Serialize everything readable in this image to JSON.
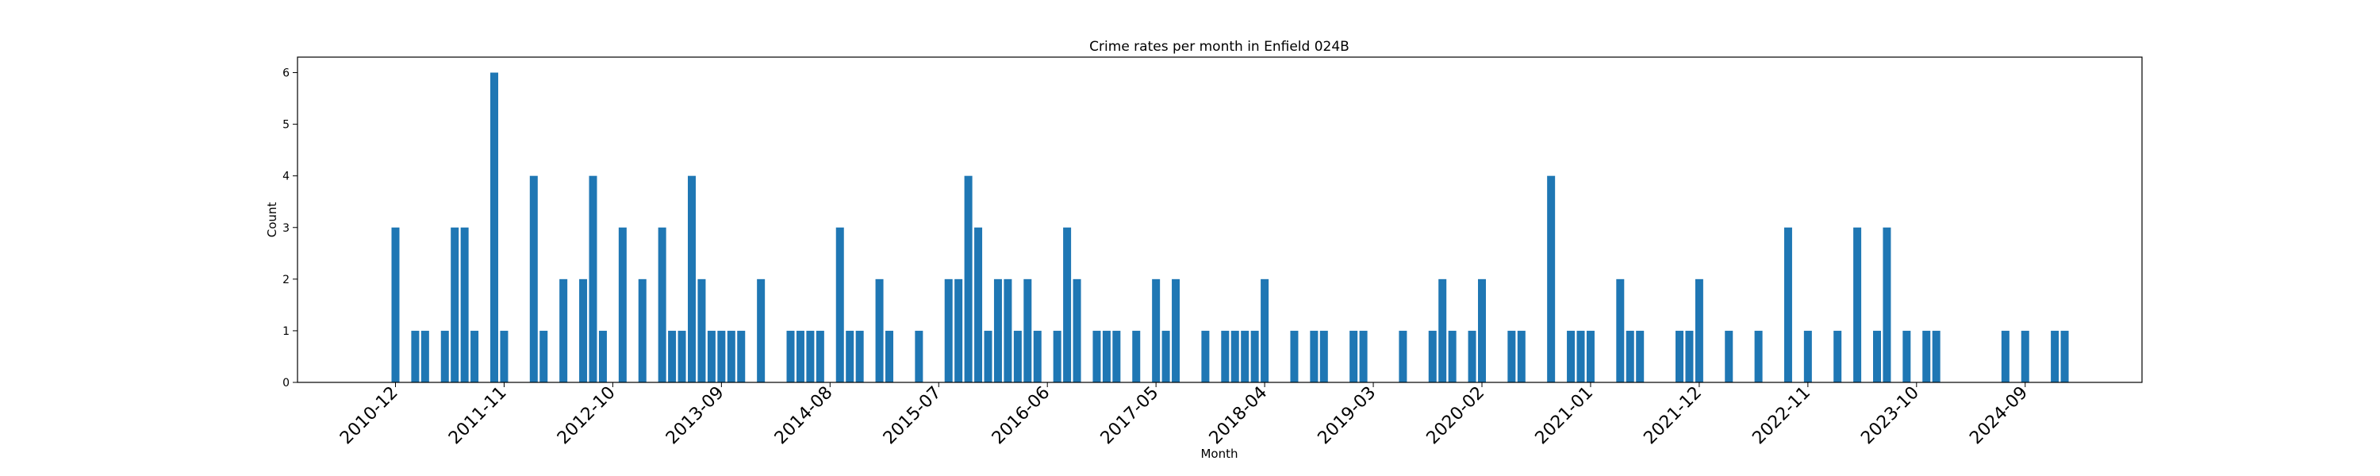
{
  "chart_data": {
    "type": "bar",
    "title": "Crime rates per month in Enfield 024B",
    "xlabel": "Month",
    "ylabel": "Count",
    "ylim": [
      0,
      6.3
    ],
    "yticks": [
      0,
      1,
      2,
      3,
      4,
      5,
      6
    ],
    "xtick_labels": [
      "2010-12",
      "2011-11",
      "2012-10",
      "2013-09",
      "2014-08",
      "2015-07",
      "2016-06",
      "2017-05",
      "2018-04",
      "2019-03",
      "2020-02",
      "2021-01",
      "2021-12",
      "2022-11",
      "2023-10",
      "2024-09"
    ],
    "bar_color": "#1f77b4",
    "grid": false,
    "data": [
      {
        "month": "2010-12",
        "value": 3
      },
      {
        "month": "2011-01",
        "value": 0
      },
      {
        "month": "2011-02",
        "value": 1
      },
      {
        "month": "2011-03",
        "value": 1
      },
      {
        "month": "2011-04",
        "value": 0
      },
      {
        "month": "2011-05",
        "value": 1
      },
      {
        "month": "2011-06",
        "value": 3
      },
      {
        "month": "2011-07",
        "value": 3
      },
      {
        "month": "2011-08",
        "value": 1
      },
      {
        "month": "2011-09",
        "value": 0
      },
      {
        "month": "2011-10",
        "value": 6
      },
      {
        "month": "2011-11",
        "value": 1
      },
      {
        "month": "2011-12",
        "value": 0
      },
      {
        "month": "2012-01",
        "value": 0
      },
      {
        "month": "2012-02",
        "value": 4
      },
      {
        "month": "2012-03",
        "value": 1
      },
      {
        "month": "2012-04",
        "value": 0
      },
      {
        "month": "2012-05",
        "value": 2
      },
      {
        "month": "2012-06",
        "value": 0
      },
      {
        "month": "2012-07",
        "value": 2
      },
      {
        "month": "2012-08",
        "value": 4
      },
      {
        "month": "2012-09",
        "value": 1
      },
      {
        "month": "2012-10",
        "value": 0
      },
      {
        "month": "2012-11",
        "value": 3
      },
      {
        "month": "2012-12",
        "value": 0
      },
      {
        "month": "2013-01",
        "value": 2
      },
      {
        "month": "2013-02",
        "value": 0
      },
      {
        "month": "2013-03",
        "value": 3
      },
      {
        "month": "2013-04",
        "value": 1
      },
      {
        "month": "2013-05",
        "value": 1
      },
      {
        "month": "2013-06",
        "value": 4
      },
      {
        "month": "2013-07",
        "value": 2
      },
      {
        "month": "2013-08",
        "value": 1
      },
      {
        "month": "2013-09",
        "value": 1
      },
      {
        "month": "2013-10",
        "value": 1
      },
      {
        "month": "2013-11",
        "value": 1
      },
      {
        "month": "2013-12",
        "value": 0
      },
      {
        "month": "2014-01",
        "value": 2
      },
      {
        "month": "2014-02",
        "value": 0
      },
      {
        "month": "2014-03",
        "value": 0
      },
      {
        "month": "2014-04",
        "value": 1
      },
      {
        "month": "2014-05",
        "value": 1
      },
      {
        "month": "2014-06",
        "value": 1
      },
      {
        "month": "2014-07",
        "value": 1
      },
      {
        "month": "2014-08",
        "value": 0
      },
      {
        "month": "2014-09",
        "value": 3
      },
      {
        "month": "2014-10",
        "value": 1
      },
      {
        "month": "2014-11",
        "value": 1
      },
      {
        "month": "2014-12",
        "value": 0
      },
      {
        "month": "2015-01",
        "value": 2
      },
      {
        "month": "2015-02",
        "value": 1
      },
      {
        "month": "2015-03",
        "value": 0
      },
      {
        "month": "2015-04",
        "value": 0
      },
      {
        "month": "2015-05",
        "value": 1
      },
      {
        "month": "2015-06",
        "value": 0
      },
      {
        "month": "2015-07",
        "value": 0
      },
      {
        "month": "2015-08",
        "value": 2
      },
      {
        "month": "2015-09",
        "value": 2
      },
      {
        "month": "2015-10",
        "value": 4
      },
      {
        "month": "2015-11",
        "value": 3
      },
      {
        "month": "2015-12",
        "value": 1
      },
      {
        "month": "2016-01",
        "value": 2
      },
      {
        "month": "2016-02",
        "value": 2
      },
      {
        "month": "2016-03",
        "value": 1
      },
      {
        "month": "2016-04",
        "value": 2
      },
      {
        "month": "2016-05",
        "value": 1
      },
      {
        "month": "2016-06",
        "value": 0
      },
      {
        "month": "2016-07",
        "value": 1
      },
      {
        "month": "2016-08",
        "value": 3
      },
      {
        "month": "2016-09",
        "value": 2
      },
      {
        "month": "2016-10",
        "value": 0
      },
      {
        "month": "2016-11",
        "value": 1
      },
      {
        "month": "2016-12",
        "value": 1
      },
      {
        "month": "2017-01",
        "value": 1
      },
      {
        "month": "2017-02",
        "value": 0
      },
      {
        "month": "2017-03",
        "value": 1
      },
      {
        "month": "2017-04",
        "value": 0
      },
      {
        "month": "2017-05",
        "value": 2
      },
      {
        "month": "2017-06",
        "value": 1
      },
      {
        "month": "2017-07",
        "value": 2
      },
      {
        "month": "2017-08",
        "value": 0
      },
      {
        "month": "2017-09",
        "value": 0
      },
      {
        "month": "2017-10",
        "value": 1
      },
      {
        "month": "2017-11",
        "value": 0
      },
      {
        "month": "2017-12",
        "value": 1
      },
      {
        "month": "2018-01",
        "value": 1
      },
      {
        "month": "2018-02",
        "value": 1
      },
      {
        "month": "2018-03",
        "value": 1
      },
      {
        "month": "2018-04",
        "value": 2
      },
      {
        "month": "2018-05",
        "value": 0
      },
      {
        "month": "2018-06",
        "value": 0
      },
      {
        "month": "2018-07",
        "value": 1
      },
      {
        "month": "2018-08",
        "value": 0
      },
      {
        "month": "2018-09",
        "value": 1
      },
      {
        "month": "2018-10",
        "value": 1
      },
      {
        "month": "2018-11",
        "value": 0
      },
      {
        "month": "2018-12",
        "value": 0
      },
      {
        "month": "2019-01",
        "value": 1
      },
      {
        "month": "2019-02",
        "value": 1
      },
      {
        "month": "2019-03",
        "value": 0
      },
      {
        "month": "2019-04",
        "value": 0
      },
      {
        "month": "2019-05",
        "value": 0
      },
      {
        "month": "2019-06",
        "value": 1
      },
      {
        "month": "2019-07",
        "value": 0
      },
      {
        "month": "2019-08",
        "value": 0
      },
      {
        "month": "2019-09",
        "value": 1
      },
      {
        "month": "2019-10",
        "value": 2
      },
      {
        "month": "2019-11",
        "value": 1
      },
      {
        "month": "2019-12",
        "value": 0
      },
      {
        "month": "2020-01",
        "value": 1
      },
      {
        "month": "2020-02",
        "value": 2
      },
      {
        "month": "2020-03",
        "value": 0
      },
      {
        "month": "2020-04",
        "value": 0
      },
      {
        "month": "2020-05",
        "value": 1
      },
      {
        "month": "2020-06",
        "value": 1
      },
      {
        "month": "2020-07",
        "value": 0
      },
      {
        "month": "2020-08",
        "value": 0
      },
      {
        "month": "2020-09",
        "value": 4
      },
      {
        "month": "2020-10",
        "value": 0
      },
      {
        "month": "2020-11",
        "value": 1
      },
      {
        "month": "2020-12",
        "value": 1
      },
      {
        "month": "2021-01",
        "value": 1
      },
      {
        "month": "2021-02",
        "value": 0
      },
      {
        "month": "2021-03",
        "value": 0
      },
      {
        "month": "2021-04",
        "value": 2
      },
      {
        "month": "2021-05",
        "value": 1
      },
      {
        "month": "2021-06",
        "value": 1
      },
      {
        "month": "2021-07",
        "value": 0
      },
      {
        "month": "2021-08",
        "value": 0
      },
      {
        "month": "2021-09",
        "value": 0
      },
      {
        "month": "2021-10",
        "value": 1
      },
      {
        "month": "2021-11",
        "value": 1
      },
      {
        "month": "2021-12",
        "value": 2
      },
      {
        "month": "2022-01",
        "value": 0
      },
      {
        "month": "2022-02",
        "value": 0
      },
      {
        "month": "2022-03",
        "value": 1
      },
      {
        "month": "2022-04",
        "value": 0
      },
      {
        "month": "2022-05",
        "value": 0
      },
      {
        "month": "2022-06",
        "value": 1
      },
      {
        "month": "2022-07",
        "value": 0
      },
      {
        "month": "2022-08",
        "value": 0
      },
      {
        "month": "2022-09",
        "value": 3
      },
      {
        "month": "2022-10",
        "value": 0
      },
      {
        "month": "2022-11",
        "value": 1
      },
      {
        "month": "2022-12",
        "value": 0
      },
      {
        "month": "2023-01",
        "value": 0
      },
      {
        "month": "2023-02",
        "value": 1
      },
      {
        "month": "2023-03",
        "value": 0
      },
      {
        "month": "2023-04",
        "value": 3
      },
      {
        "month": "2023-05",
        "value": 0
      },
      {
        "month": "2023-06",
        "value": 1
      },
      {
        "month": "2023-07",
        "value": 3
      },
      {
        "month": "2023-08",
        "value": 0
      },
      {
        "month": "2023-09",
        "value": 1
      },
      {
        "month": "2023-10",
        "value": 0
      },
      {
        "month": "2023-11",
        "value": 1
      },
      {
        "month": "2023-12",
        "value": 1
      },
      {
        "month": "2024-01",
        "value": 0
      },
      {
        "month": "2024-02",
        "value": 0
      },
      {
        "month": "2024-03",
        "value": 0
      },
      {
        "month": "2024-04",
        "value": 0
      },
      {
        "month": "2024-05",
        "value": 0
      },
      {
        "month": "2024-06",
        "value": 0
      },
      {
        "month": "2024-07",
        "value": 1
      },
      {
        "month": "2024-08",
        "value": 0
      },
      {
        "month": "2024-09",
        "value": 1
      },
      {
        "month": "2024-10",
        "value": 0
      },
      {
        "month": "2024-11",
        "value": 0
      },
      {
        "month": "2024-12",
        "value": 1
      },
      {
        "month": "2025-01",
        "value": 1
      }
    ]
  }
}
